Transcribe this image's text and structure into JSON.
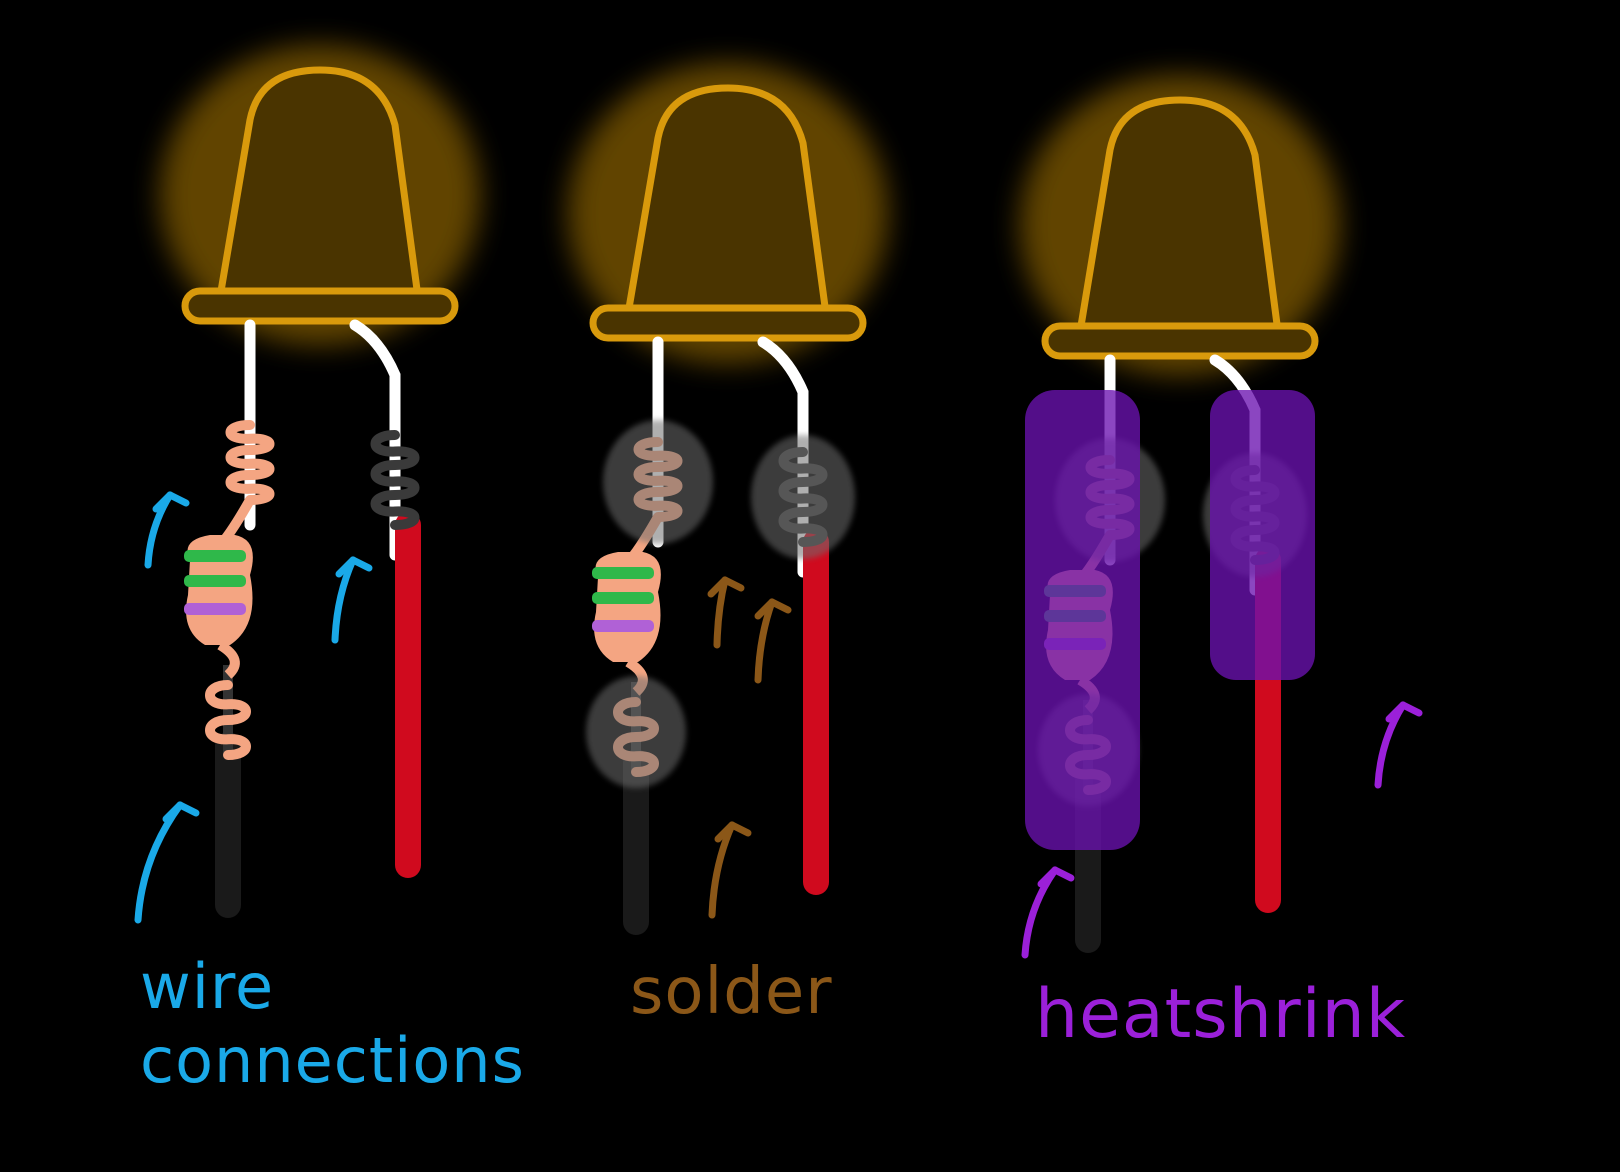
{
  "colors": {
    "background": "#000000",
    "led_outline": "#d99a0c",
    "led_fill": "#4a3400",
    "led_glow": "#8a6200",
    "lead": "#ffffff",
    "coil_resistor": "#f4a582",
    "resistor_band_green": "#2fb84a",
    "resistor_band_violet": "#b061d6",
    "coil_lead": "#3a3a3a",
    "wire_red": "#d00a1e",
    "wire_black": "#1a1a1a",
    "solder_blob": "#6e6e6e",
    "heatshrink": "#6a12b0",
    "wire_connections_color": "#1aa9e8",
    "solder_color": "#8b5718",
    "heatshrink_color": "#9b20d9"
  },
  "panels": [
    {
      "id": "wire-connections",
      "caption_lines": [
        "wire",
        "connections"
      ],
      "color_key": "wire_connections_color",
      "arrow_count": 3
    },
    {
      "id": "solder",
      "caption_lines": [
        "solder"
      ],
      "color_key": "solder_color",
      "arrow_count": 3
    },
    {
      "id": "heatshrink",
      "caption_lines": [
        "heatshrink"
      ],
      "color_key": "heatshrink_color",
      "arrow_count": 2
    }
  ],
  "icons": [
    "led-icon",
    "resistor-icon",
    "arrow-icon"
  ]
}
